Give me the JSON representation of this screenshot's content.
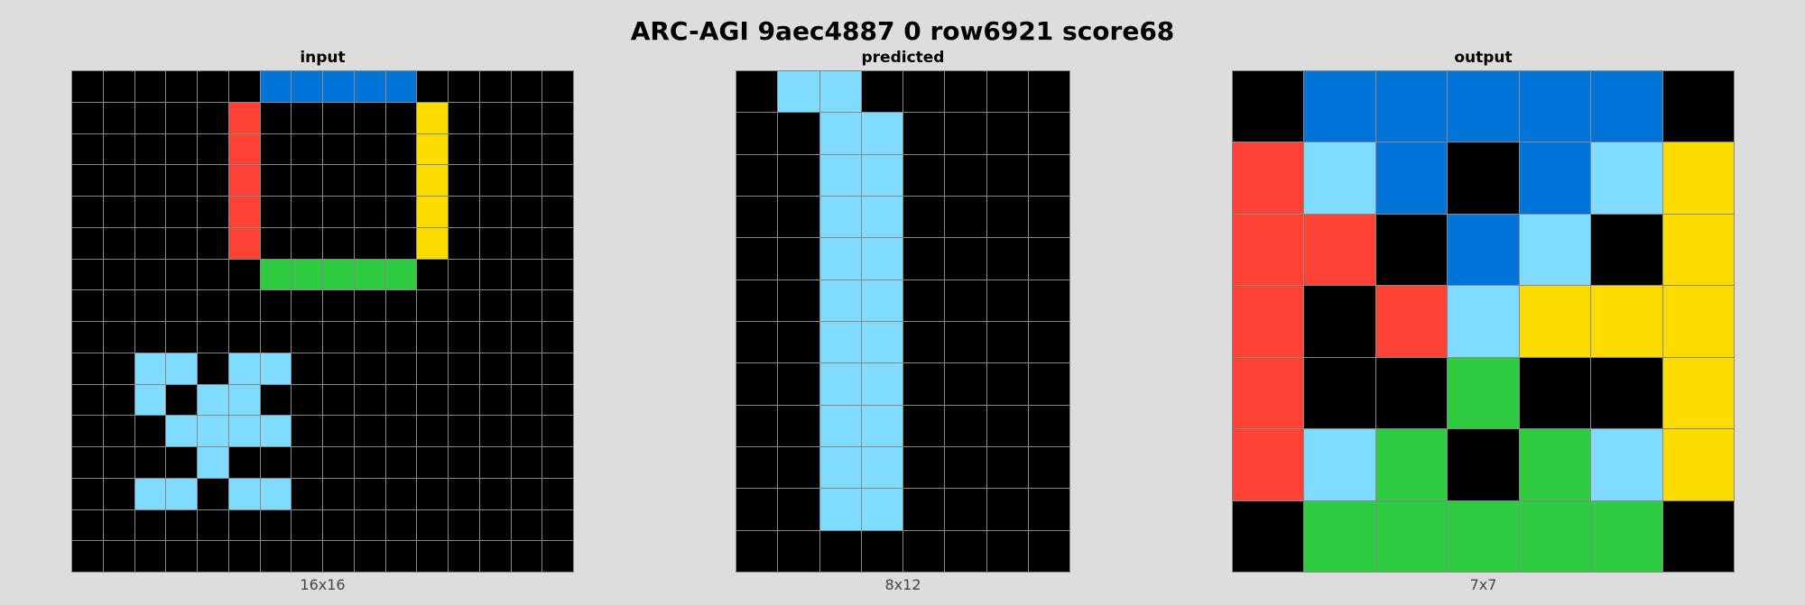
{
  "title": "ARC-AGI 9aec4887 0 row6921 score68",
  "palette": {
    "0": "#000000",
    "1": "#0074D9",
    "2": "#FF4136",
    "3": "#2ECC40",
    "4": "#FFDC00",
    "8": "#7FDBFF"
  },
  "panels": [
    {
      "label": "input",
      "size_label": "16x16",
      "rows": 16,
      "cols": 16,
      "grid": [
        [
          0,
          0,
          0,
          0,
          0,
          0,
          1,
          1,
          1,
          1,
          1,
          0,
          0,
          0,
          0,
          0
        ],
        [
          0,
          0,
          0,
          0,
          0,
          2,
          0,
          0,
          0,
          0,
          0,
          4,
          0,
          0,
          0,
          0
        ],
        [
          0,
          0,
          0,
          0,
          0,
          2,
          0,
          0,
          0,
          0,
          0,
          4,
          0,
          0,
          0,
          0
        ],
        [
          0,
          0,
          0,
          0,
          0,
          2,
          0,
          0,
          0,
          0,
          0,
          4,
          0,
          0,
          0,
          0
        ],
        [
          0,
          0,
          0,
          0,
          0,
          2,
          0,
          0,
          0,
          0,
          0,
          4,
          0,
          0,
          0,
          0
        ],
        [
          0,
          0,
          0,
          0,
          0,
          2,
          0,
          0,
          0,
          0,
          0,
          4,
          0,
          0,
          0,
          0
        ],
        [
          0,
          0,
          0,
          0,
          0,
          0,
          3,
          3,
          3,
          3,
          3,
          0,
          0,
          0,
          0,
          0
        ],
        [
          0,
          0,
          0,
          0,
          0,
          0,
          0,
          0,
          0,
          0,
          0,
          0,
          0,
          0,
          0,
          0
        ],
        [
          0,
          0,
          0,
          0,
          0,
          0,
          0,
          0,
          0,
          0,
          0,
          0,
          0,
          0,
          0,
          0
        ],
        [
          0,
          0,
          8,
          8,
          0,
          8,
          8,
          0,
          0,
          0,
          0,
          0,
          0,
          0,
          0,
          0
        ],
        [
          0,
          0,
          8,
          0,
          8,
          8,
          0,
          0,
          0,
          0,
          0,
          0,
          0,
          0,
          0,
          0
        ],
        [
          0,
          0,
          0,
          8,
          8,
          8,
          8,
          0,
          0,
          0,
          0,
          0,
          0,
          0,
          0,
          0
        ],
        [
          0,
          0,
          0,
          0,
          8,
          0,
          0,
          0,
          0,
          0,
          0,
          0,
          0,
          0,
          0,
          0
        ],
        [
          0,
          0,
          8,
          8,
          0,
          8,
          8,
          0,
          0,
          0,
          0,
          0,
          0,
          0,
          0,
          0
        ],
        [
          0,
          0,
          0,
          0,
          0,
          0,
          0,
          0,
          0,
          0,
          0,
          0,
          0,
          0,
          0,
          0
        ],
        [
          0,
          0,
          0,
          0,
          0,
          0,
          0,
          0,
          0,
          0,
          0,
          0,
          0,
          0,
          0,
          0
        ]
      ]
    },
    {
      "label": "predicted",
      "size_label": "8x12",
      "rows": 12,
      "cols": 8,
      "grid": [
        [
          0,
          8,
          8,
          0,
          0,
          0,
          0,
          0
        ],
        [
          0,
          0,
          8,
          8,
          0,
          0,
          0,
          0
        ],
        [
          0,
          0,
          8,
          8,
          0,
          0,
          0,
          0
        ],
        [
          0,
          0,
          8,
          8,
          0,
          0,
          0,
          0
        ],
        [
          0,
          0,
          8,
          8,
          0,
          0,
          0,
          0
        ],
        [
          0,
          0,
          8,
          8,
          0,
          0,
          0,
          0
        ],
        [
          0,
          0,
          8,
          8,
          0,
          0,
          0,
          0
        ],
        [
          0,
          0,
          8,
          8,
          0,
          0,
          0,
          0
        ],
        [
          0,
          0,
          8,
          8,
          0,
          0,
          0,
          0
        ],
        [
          0,
          0,
          8,
          8,
          0,
          0,
          0,
          0
        ],
        [
          0,
          0,
          8,
          8,
          0,
          0,
          0,
          0
        ],
        [
          0,
          0,
          0,
          0,
          0,
          0,
          0,
          0
        ]
      ]
    },
    {
      "label": "output",
      "size_label": "7x7",
      "rows": 7,
      "cols": 7,
      "grid": [
        [
          0,
          1,
          1,
          1,
          1,
          1,
          0
        ],
        [
          2,
          8,
          1,
          0,
          1,
          8,
          4
        ],
        [
          2,
          2,
          0,
          1,
          8,
          0,
          4
        ],
        [
          2,
          0,
          2,
          8,
          4,
          4,
          4
        ],
        [
          2,
          0,
          0,
          3,
          0,
          0,
          4
        ],
        [
          2,
          8,
          3,
          0,
          3,
          8,
          4
        ],
        [
          0,
          3,
          3,
          3,
          3,
          3,
          0
        ]
      ]
    }
  ]
}
